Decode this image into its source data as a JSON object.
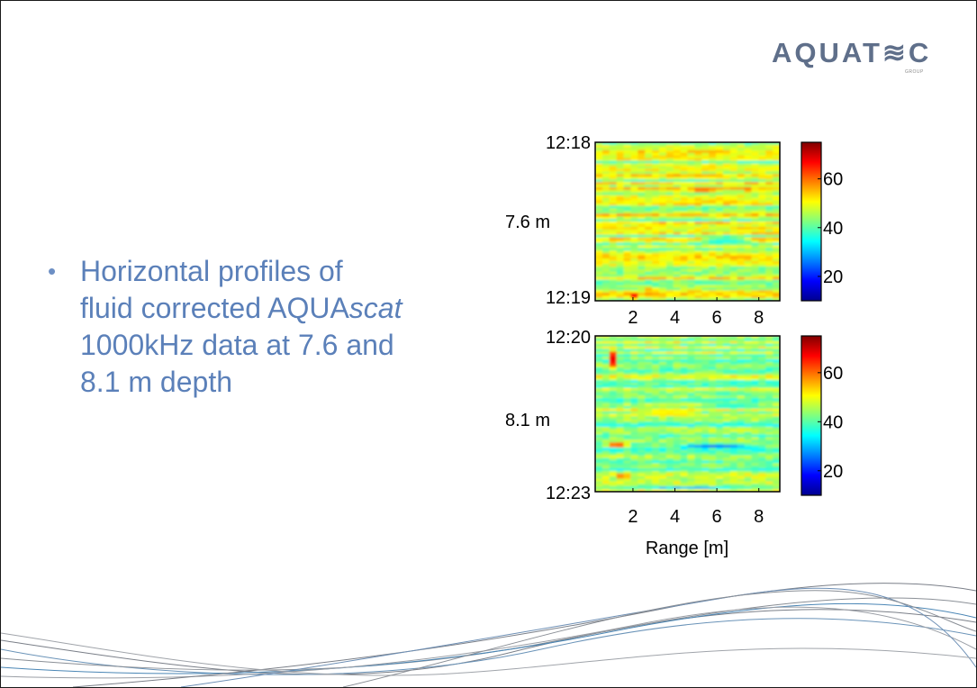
{
  "logo": {
    "wordmark": "AQUAT≋C",
    "sub": "GROUP"
  },
  "bullet": {
    "symbol": "•",
    "line1": "Horizontal profiles of",
    "line2_pre": "fluid corrected AQUA",
    "line2_italic": "scat",
    "line3": "1000kHz data at 7.6 and",
    "line4": "8.1 m depth"
  },
  "chart_data": [
    {
      "type": "heatmap",
      "depth_label": "7.6 m",
      "y_ticks": [
        "12:18",
        "12:19"
      ],
      "x_ticks": [
        2,
        4,
        6,
        8
      ],
      "xlim": [
        0.2,
        9.0
      ],
      "xlabel": "",
      "colorbar": {
        "ticks": [
          20,
          40,
          60
        ],
        "range": [
          10,
          75
        ],
        "colormap": "jet"
      }
    },
    {
      "type": "heatmap",
      "depth_label": "8.1 m",
      "y_ticks": [
        "12:20",
        "12:23"
      ],
      "x_ticks": [
        2,
        4,
        6,
        8
      ],
      "xlim": [
        0.2,
        9.0
      ],
      "xlabel": "Range [m]",
      "colorbar": {
        "ticks": [
          20,
          40,
          60
        ],
        "range": [
          10,
          75
        ],
        "colormap": "jet"
      }
    }
  ]
}
